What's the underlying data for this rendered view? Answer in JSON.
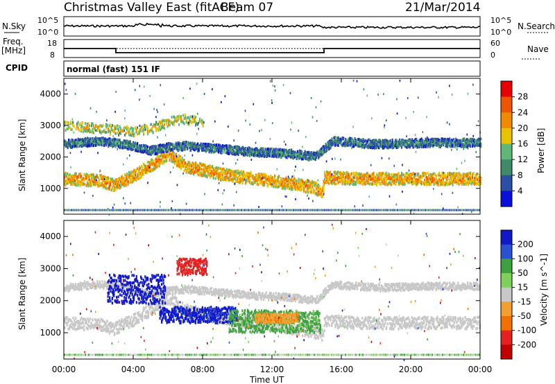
{
  "header": {
    "title": "Christmas Valley East (fitACF)",
    "beam": "Beam 07",
    "date": "21/Mar/2014"
  },
  "strip_labels": {
    "nsky": "N.Sky",
    "nsearch": "N.Search",
    "freq": "Freq.",
    "freq_unit": "[MHz]",
    "nave": "Nave",
    "cpid": "CPID",
    "cpid_value": "normal (fast) 151 IF"
  },
  "noise_axis": {
    "low": "10^0",
    "high": "10^5"
  },
  "freq_axis": {
    "low": "8",
    "high": "18"
  },
  "nave_axis": {
    "low": "0",
    "high": "60"
  },
  "axes": {
    "xlabel": "Time UT",
    "ylabel": "Slant Range [km]",
    "xticks": [
      "00:00",
      "04:00",
      "08:00",
      "12:00",
      "16:00",
      "20:00",
      "00:00"
    ],
    "yticks": [
      "1000",
      "2000",
      "3000",
      "4000"
    ]
  },
  "power_scale": {
    "label": "Power [dB]",
    "ticks": [
      "4",
      "8",
      "12",
      "16",
      "20",
      "24",
      "28"
    ],
    "colors": [
      "#0a10d8",
      "#2b4fa6",
      "#3f8a6a",
      "#5fb87a",
      "#e6c200",
      "#f08a00",
      "#ee5500",
      "#e60000"
    ]
  },
  "velocity_scale": {
    "label": "Velocity [m s^-1]",
    "ticks": [
      "200",
      "100",
      "50",
      "15",
      "-15",
      "-50",
      "-100",
      "-200"
    ],
    "colors": [
      "#1018c8",
      "#2a52d0",
      "#3fa040",
      "#7fd05a",
      "#c8c8c8",
      "#f0a030",
      "#f07000",
      "#e62020",
      "#c00000"
    ]
  },
  "chart_data": {
    "type": "heatmap",
    "x_range": [
      "00:00",
      "24:00"
    ],
    "y_range_km": [
      180,
      4500
    ],
    "frequency_mhz": [
      {
        "from": "00:00",
        "to": "03:00",
        "value": 13
      },
      {
        "from": "03:00",
        "to": "15:00",
        "value": 10.5
      },
      {
        "from": "15:00",
        "to": "24:00",
        "value": 13
      }
    ],
    "power_bands": [
      {
        "name": "lower band",
        "points": [
          [
            0,
            1300
          ],
          [
            2,
            1250
          ],
          [
            2.9,
            1100
          ],
          [
            3,
            1150
          ],
          [
            4,
            1400
          ],
          [
            5.2,
            1800
          ],
          [
            6,
            2100
          ],
          [
            7,
            1700
          ],
          [
            9,
            1450
          ],
          [
            11,
            1300
          ],
          [
            13,
            1150
          ],
          [
            14.2,
            1050
          ],
          [
            14.9,
            900
          ],
          [
            15,
            1350
          ],
          [
            17,
            1300
          ],
          [
            20,
            1300
          ],
          [
            24,
            1300
          ]
        ],
        "db": 22
      },
      {
        "name": "upper band",
        "points": [
          [
            0,
            2400
          ],
          [
            2,
            2500
          ],
          [
            3.5,
            2400
          ],
          [
            5,
            2200
          ],
          [
            6,
            2300
          ],
          [
            7,
            2350
          ],
          [
            9,
            2250
          ],
          [
            11,
            2150
          ],
          [
            13,
            2100
          ],
          [
            14.5,
            2000
          ],
          [
            15.5,
            2500
          ],
          [
            18,
            2400
          ],
          [
            21,
            2450
          ],
          [
            24,
            2450
          ]
        ],
        "db": 10
      },
      {
        "name": "high echoes",
        "points": [
          [
            0,
            3000
          ],
          [
            2,
            2900
          ],
          [
            4,
            2800
          ],
          [
            5,
            2900
          ],
          [
            6,
            3100
          ],
          [
            7,
            3200
          ],
          [
            8,
            3100
          ]
        ],
        "db": 18
      }
    ],
    "velocity_regions": [
      {
        "from": 2.5,
        "to": 5.8,
        "range_km": [
          1900,
          2800
        ],
        "velocity": 180
      },
      {
        "from": 6.5,
        "to": 8.2,
        "range_km": [
          2800,
          3300
        ],
        "velocity": -180
      },
      {
        "from": 5.5,
        "to": 10,
        "range_km": [
          1300,
          1800
        ],
        "velocity": 160
      },
      {
        "from": 9.5,
        "to": 14.8,
        "range_km": [
          1000,
          1700
        ],
        "velocity": 40
      },
      {
        "from": 11,
        "to": 13.5,
        "range_km": [
          1300,
          1600
        ],
        "velocity": -40
      },
      {
        "from": 0,
        "to": 24,
        "range_km": [
          1000,
          1700
        ],
        "velocity": 0
      }
    ]
  }
}
